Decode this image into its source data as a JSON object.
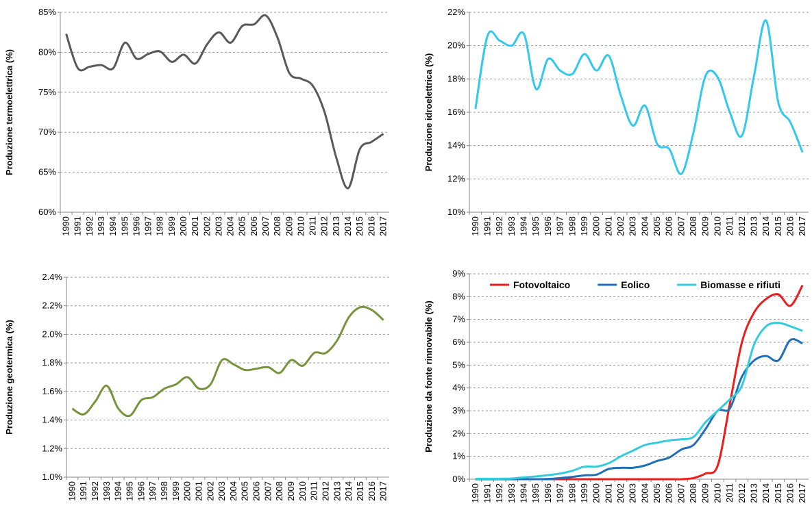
{
  "chart_data": [
    {
      "type": "line",
      "y_label": "Produzione termoelettrica  (%)",
      "categories": [
        "1990",
        "1991",
        "1992",
        "1993",
        "1994",
        "1995",
        "1996",
        "1997",
        "1998",
        "1999",
        "2000",
        "2001",
        "2002",
        "2003",
        "2004",
        "2005",
        "2006",
        "2007",
        "2008",
        "2009",
        "2010",
        "2011",
        "2012",
        "2013",
        "2014",
        "2015",
        "2016",
        "2017"
      ],
      "values": [
        82.3,
        78.0,
        78.2,
        78.4,
        78.0,
        81.2,
        79.2,
        79.8,
        80.1,
        78.8,
        79.7,
        78.6,
        81.0,
        82.5,
        81.2,
        83.3,
        83.5,
        84.6,
        81.8,
        77.4,
        76.7,
        75.8,
        72.5,
        66.8,
        63.0,
        67.9,
        68.8,
        69.8
      ],
      "color": "#595959",
      "ylim": [
        60,
        85
      ],
      "yticks": [
        {
          "value": 60,
          "label": "60%"
        },
        {
          "value": 65,
          "label": "65%"
        },
        {
          "value": 70,
          "label": "70%"
        },
        {
          "value": 75,
          "label": "75%"
        },
        {
          "value": 80,
          "label": "80%"
        },
        {
          "value": 85,
          "label": "85%"
        }
      ],
      "grid": true
    },
    {
      "type": "line",
      "y_label": "Produzione idroelettrica  (%)",
      "categories": [
        "1990",
        "1991",
        "1992",
        "1993",
        "1994",
        "1995",
        "1996",
        "1997",
        "1998",
        "1999",
        "2000",
        "2001",
        "2002",
        "2003",
        "2004",
        "2005",
        "2006",
        "2007",
        "2008",
        "2009",
        "2010",
        "2011",
        "2012",
        "2013",
        "2014",
        "2015",
        "2016",
        "2017"
      ],
      "values": [
        16.2,
        20.6,
        20.3,
        20.0,
        20.7,
        17.4,
        19.2,
        18.5,
        18.3,
        19.5,
        18.5,
        19.4,
        17.0,
        15.2,
        16.4,
        14.1,
        13.8,
        12.3,
        14.8,
        18.2,
        18.1,
        16.0,
        14.6,
        18.2,
        21.5,
        16.6,
        15.4,
        13.6
      ],
      "color": "#33c8ee",
      "ylim": [
        10,
        22
      ],
      "yticks": [
        {
          "value": 10,
          "label": "10%"
        },
        {
          "value": 12,
          "label": "12%"
        },
        {
          "value": 14,
          "label": "14%"
        },
        {
          "value": 16,
          "label": "16%"
        },
        {
          "value": 18,
          "label": "18%"
        },
        {
          "value": 20,
          "label": "20%"
        },
        {
          "value": 22,
          "label": "22%"
        }
      ],
      "grid": true
    },
    {
      "type": "line",
      "y_label": "Produzione geotermica (%)",
      "categories": [
        "1990",
        "1991",
        "1992",
        "1993",
        "1994",
        "1995",
        "1996",
        "1997",
        "1998",
        "1999",
        "2000",
        "2001",
        "2002",
        "2003",
        "2004",
        "2005",
        "2006",
        "2007",
        "2008",
        "2009",
        "2010",
        "2011",
        "2012",
        "2013",
        "2014",
        "2015",
        "2016",
        "2017"
      ],
      "values": [
        1.48,
        1.44,
        1.53,
        1.64,
        1.48,
        1.43,
        1.54,
        1.56,
        1.62,
        1.65,
        1.7,
        1.62,
        1.65,
        1.82,
        1.79,
        1.75,
        1.76,
        1.77,
        1.73,
        1.82,
        1.78,
        1.87,
        1.87,
        1.96,
        2.12,
        2.19,
        2.17,
        2.1
      ],
      "color": "#77933c",
      "ylim": [
        1.0,
        2.4
      ],
      "yticks": [
        {
          "value": 1.0,
          "label": "1.0%"
        },
        {
          "value": 1.2,
          "label": "1.2%"
        },
        {
          "value": 1.4,
          "label": "1.4%"
        },
        {
          "value": 1.6,
          "label": "1.6%"
        },
        {
          "value": 1.8,
          "label": "1.8%"
        },
        {
          "value": 2.0,
          "label": "2.0%"
        },
        {
          "value": 2.2,
          "label": "2.2%"
        },
        {
          "value": 2.4,
          "label": "2.4%"
        }
      ],
      "grid": true
    },
    {
      "type": "line",
      "y_label": "Produzione da fonte rinnovabile (%)",
      "categories": [
        "1990",
        "1991",
        "1992",
        "1993",
        "1994",
        "1995",
        "1996",
        "1997",
        "1998",
        "1999",
        "2000",
        "2001",
        "2002",
        "2003",
        "2004",
        "2005",
        "2006",
        "2007",
        "2008",
        "2009",
        "2010",
        "2011",
        "2012",
        "2013",
        "2014",
        "2015",
        "2016",
        "2017"
      ],
      "series": [
        {
          "name": "Fotovoltaico",
          "color": "#ee1c1c",
          "values": [
            0,
            0,
            0,
            0,
            0,
            0,
            0,
            0,
            0,
            0,
            0,
            0,
            0,
            0,
            0,
            0,
            0,
            0,
            0.05,
            0.25,
            0.6,
            3.3,
            6.0,
            7.3,
            7.9,
            8.1,
            7.6,
            8.5
          ]
        },
        {
          "name": "Eolico",
          "color": "#1f6fb8",
          "values": [
            0,
            0,
            0,
            0,
            0,
            0,
            0.01,
            0.05,
            0.1,
            0.17,
            0.2,
            0.45,
            0.5,
            0.5,
            0.6,
            0.8,
            0.95,
            1.3,
            1.5,
            2.2,
            3.0,
            3.1,
            4.5,
            5.2,
            5.4,
            5.2,
            6.1,
            5.95
          ]
        },
        {
          "name": "Biomasse e rifiuti",
          "color": "#33ccdd",
          "values": [
            0.02,
            0.02,
            0.02,
            0.03,
            0.08,
            0.12,
            0.18,
            0.25,
            0.37,
            0.55,
            0.55,
            0.7,
            1.0,
            1.25,
            1.5,
            1.6,
            1.7,
            1.75,
            1.85,
            2.5,
            3.0,
            3.5,
            4.1,
            5.9,
            6.7,
            6.85,
            6.7,
            6.5
          ]
        }
      ],
      "ylim": [
        0,
        9
      ],
      "yticks": [
        {
          "value": 0,
          "label": "0%"
        },
        {
          "value": 1,
          "label": "1%"
        },
        {
          "value": 2,
          "label": "2%"
        },
        {
          "value": 3,
          "label": "3%"
        },
        {
          "value": 4,
          "label": "4%"
        },
        {
          "value": 5,
          "label": "5%"
        },
        {
          "value": 6,
          "label": "6%"
        },
        {
          "value": 7,
          "label": "7%"
        },
        {
          "value": 8,
          "label": "8%"
        },
        {
          "value": 9,
          "label": "9%"
        }
      ],
      "grid": true,
      "legend": "top"
    }
  ]
}
